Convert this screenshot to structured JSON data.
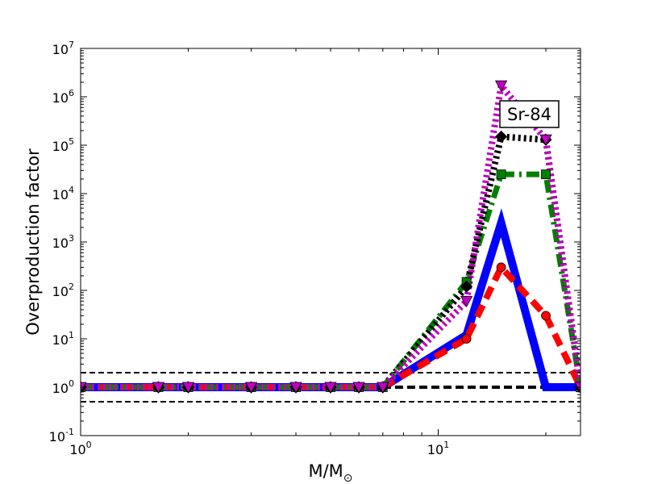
{
  "chart_data": {
    "type": "line",
    "title": "",
    "xlabel": "M/M",
    "xlabel_sub": "⊙",
    "ylabel": "Overproduction factor",
    "x_scale": "log",
    "y_scale": "log",
    "xlim": [
      1,
      25
    ],
    "ylim": [
      0.1,
      10000000
    ],
    "x_ticks": [
      {
        "value": 1,
        "base": "10",
        "exp": "0"
      },
      {
        "value": 10,
        "base": "10",
        "exp": "1"
      }
    ],
    "y_ticks": [
      {
        "value": 0.1,
        "base": "10",
        "exp": "-1"
      },
      {
        "value": 1,
        "base": "10",
        "exp": "0"
      },
      {
        "value": 10,
        "base": "10",
        "exp": "1"
      },
      {
        "value": 100,
        "base": "10",
        "exp": "2"
      },
      {
        "value": 1000,
        "base": "10",
        "exp": "3"
      },
      {
        "value": 10000,
        "base": "10",
        "exp": "4"
      },
      {
        "value": 100000,
        "base": "10",
        "exp": "5"
      },
      {
        "value": 1000000,
        "base": "10",
        "exp": "6"
      },
      {
        "value": 10000000,
        "base": "10",
        "exp": "7"
      }
    ],
    "annotation": "Sr-84",
    "reference_lines": [
      {
        "y": 2,
        "color": "#000000",
        "style": "dashed",
        "weight": "thin"
      },
      {
        "y": 1,
        "color": "#000000",
        "style": "dashed",
        "weight": "thick"
      },
      {
        "y": 0.5,
        "color": "#000000",
        "style": "dashed",
        "weight": "thin"
      }
    ],
    "series": [
      {
        "color": "#0000ff",
        "style": "solid",
        "marker": "none",
        "x": [
          1,
          1.65,
          2,
          3,
          4,
          5,
          6,
          7,
          12,
          15,
          20,
          25
        ],
        "y": [
          1,
          1,
          1,
          1,
          1,
          1,
          1,
          1,
          12,
          2500,
          1,
          1
        ]
      },
      {
        "color": "#ff0000",
        "style": "dashed",
        "marker": "circle",
        "x": [
          1,
          1.65,
          2,
          3,
          4,
          5,
          6,
          7,
          12,
          15,
          20,
          25
        ],
        "y": [
          1,
          1,
          1,
          1,
          1,
          1,
          1,
          1,
          10,
          300,
          30,
          1
        ]
      },
      {
        "color": "#008000",
        "style": "dashdot",
        "marker": "square",
        "x": [
          1,
          1.65,
          2,
          3,
          4,
          5,
          6,
          7,
          12,
          15,
          20,
          25
        ],
        "y": [
          1,
          1,
          1,
          1,
          1,
          1,
          1,
          1,
          150,
          25000,
          25000,
          1
        ]
      },
      {
        "color": "#000000",
        "style": "dotted",
        "marker": "diamond",
        "x": [
          1,
          1.65,
          2,
          3,
          4,
          5,
          6,
          7,
          12,
          15,
          20,
          25
        ],
        "y": [
          1,
          1,
          1,
          1,
          1,
          1,
          1,
          1,
          120,
          150000,
          130000,
          1
        ]
      },
      {
        "color": "#bf00bf",
        "style": "dotted",
        "marker": "triangle-down",
        "x": [
          1,
          1.65,
          2,
          3,
          4,
          5,
          6,
          7,
          12,
          15,
          20,
          25
        ],
        "y": [
          1,
          1,
          1,
          1,
          1,
          1,
          1,
          1,
          60,
          1700000,
          130000,
          1
        ]
      }
    ]
  }
}
